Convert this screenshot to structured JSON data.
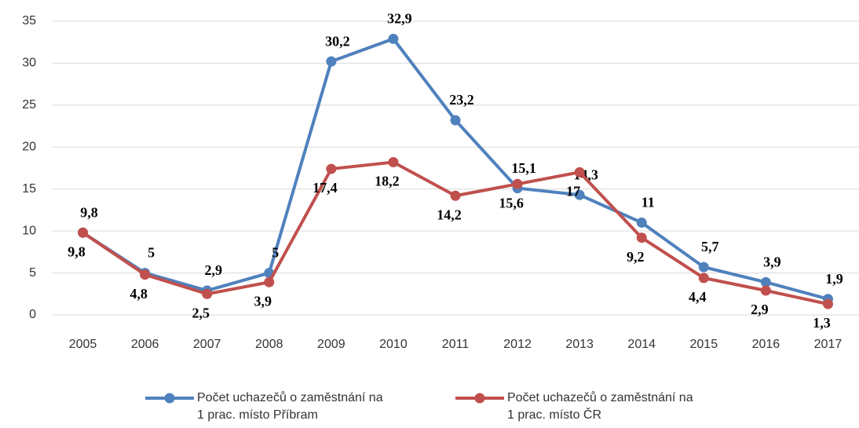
{
  "chart_data": {
    "type": "line",
    "categories": [
      "2005",
      "2006",
      "2007",
      "2008",
      "2009",
      "2010",
      "2011",
      "2012",
      "2013",
      "2014",
      "2015",
      "2016",
      "2017"
    ],
    "series": [
      {
        "name": "Počet uchazečů o zaměstnání na 1 prac. místo Příbram",
        "color": "#4f81bd",
        "values": [
          9.8,
          5,
          2.9,
          5,
          30.2,
          32.9,
          23.2,
          15.1,
          14.3,
          11,
          5.7,
          3.9,
          1.9
        ],
        "value_labels": [
          "9,8",
          "5",
          "2,9",
          "5",
          "30,2",
          "32,9",
          "23,2",
          "15,1",
          "14,3",
          "11",
          "5,7",
          "3,9",
          "1,9"
        ]
      },
      {
        "name": "Počet uchazečů o zaměstnání na 1 prac. místo ČR",
        "color": "#c0504d",
        "values": [
          9.8,
          4.8,
          2.5,
          3.9,
          17.4,
          18.2,
          14.2,
          15.6,
          17,
          9.2,
          4.4,
          2.9,
          1.3
        ],
        "value_labels": [
          "9,8",
          "4,8",
          "2,5",
          "3,9",
          "17,4",
          "18,2",
          "14,2",
          "15,6",
          "17",
          "9,2",
          "4,4",
          "2,9",
          "1,3"
        ]
      }
    ],
    "ylim": [
      0,
      35
    ],
    "yticks": [
      0,
      5,
      10,
      15,
      20,
      25,
      30,
      35
    ],
    "grid": true
  }
}
